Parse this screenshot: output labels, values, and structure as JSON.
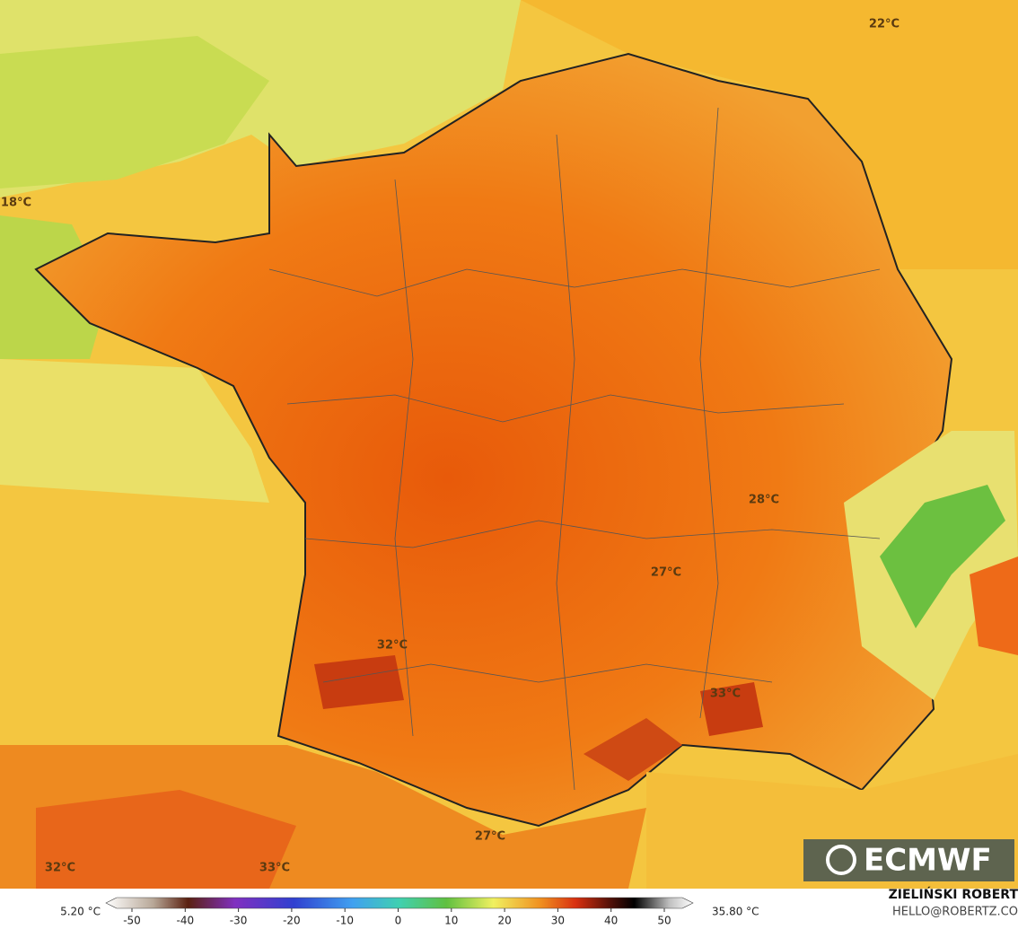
{
  "map": {
    "temperature_labels": [
      "22°C",
      "18°C",
      "28°C",
      "27°C",
      "32°C",
      "33°C",
      "27°C",
      "32°C",
      "33°C"
    ],
    "logo": "ECMWF",
    "colorbar": {
      "min_label": "5.20 °C",
      "max_label": "35.80 °C",
      "ticks": [
        -50,
        -40,
        -30,
        -20,
        -10,
        0,
        10,
        20,
        30,
        40,
        50
      ]
    },
    "credit": {
      "name": "ZIELIŃSKI ROBERT",
      "contact": "HELLO@ROBERTZ.CO"
    }
  }
}
